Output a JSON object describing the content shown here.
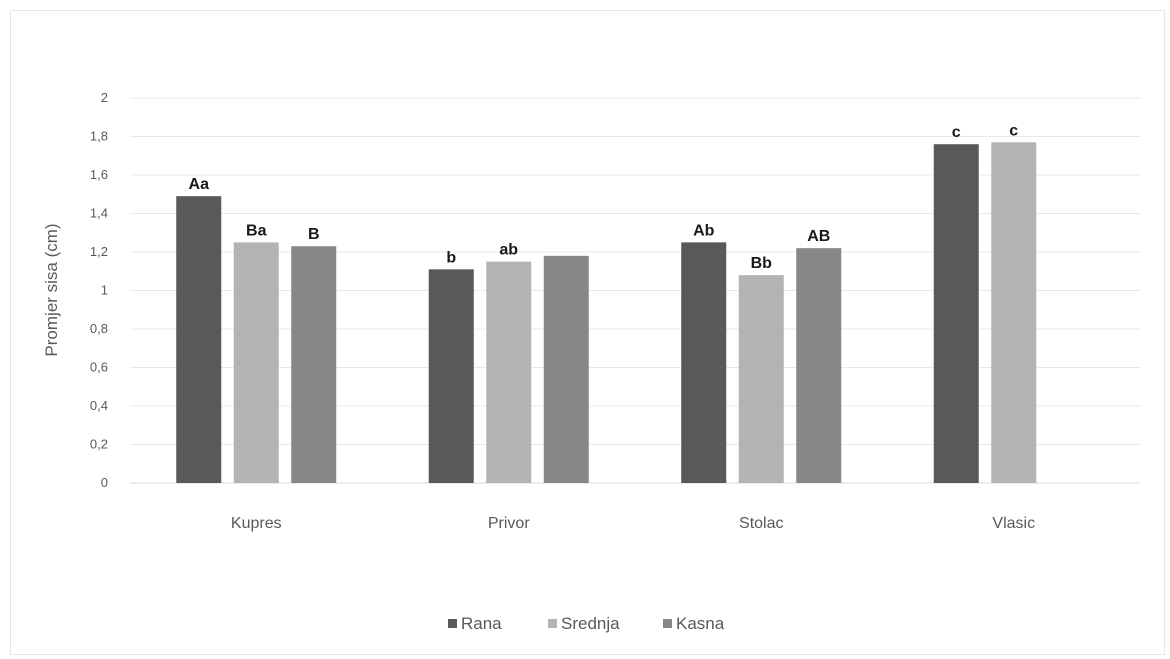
{
  "chart_data": {
    "type": "bar",
    "title": "",
    "xlabel": "",
    "ylabel": "Promjer sisa (cm)",
    "ylim": [
      0,
      2
    ],
    "yticks": [
      "0",
      "0,2",
      "0,4",
      "0,6",
      "0,8",
      "1",
      "1,2",
      "1,4",
      "1,6",
      "1,8",
      "2"
    ],
    "grid": true,
    "legend_position": "bottom",
    "categories": [
      "Kupres",
      "Privor",
      "Stolac",
      "Vlasic"
    ],
    "series": [
      {
        "name": "Rana",
        "color": "#595959",
        "values": [
          1.49,
          1.11,
          1.25,
          1.76
        ],
        "labels": [
          "Aa",
          "b",
          "Ab",
          "c"
        ]
      },
      {
        "name": "Srednja",
        "color": "#b3b3b3",
        "values": [
          1.25,
          1.15,
          1.08,
          1.77
        ],
        "labels": [
          "Ba",
          "ab",
          "Bb",
          "c"
        ]
      },
      {
        "name": "Kasna",
        "color": "#878787",
        "values": [
          1.23,
          1.18,
          1.22,
          null
        ],
        "labels": [
          "B",
          "",
          "AB",
          ""
        ]
      }
    ]
  }
}
